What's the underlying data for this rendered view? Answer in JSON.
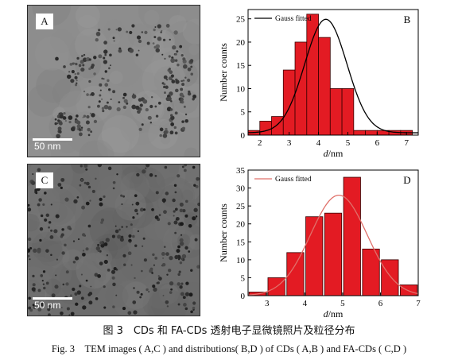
{
  "panels": {
    "a": {
      "letter": "A",
      "scale": "50 nm"
    },
    "c": {
      "letter": "C",
      "scale": "50 nm"
    }
  },
  "chart_data": [
    {
      "panel": "B",
      "type": "bar",
      "xlabel": "d/nm",
      "ylabel": "Number counts",
      "legend": "Gauss fitted",
      "legend_position": "top-left",
      "xlim": [
        1.6,
        7.4
      ],
      "ylim": [
        0,
        27
      ],
      "xticks": [
        2,
        3,
        4,
        5,
        6,
        7
      ],
      "yticks": [
        0,
        5,
        10,
        15,
        20,
        25
      ],
      "bar_width": 0.4,
      "bars": [
        {
          "x": 1.8,
          "y": 1
        },
        {
          "x": 2.2,
          "y": 3
        },
        {
          "x": 2.6,
          "y": 4
        },
        {
          "x": 3.0,
          "y": 14
        },
        {
          "x": 3.4,
          "y": 20
        },
        {
          "x": 3.8,
          "y": 26
        },
        {
          "x": 4.2,
          "y": 21
        },
        {
          "x": 4.6,
          "y": 10
        },
        {
          "x": 5.0,
          "y": 10
        },
        {
          "x": 5.4,
          "y": 1
        },
        {
          "x": 5.8,
          "y": 1
        },
        {
          "x": 6.2,
          "y": 1
        },
        {
          "x": 6.6,
          "y": 1
        },
        {
          "x": 7.0,
          "y": 1
        }
      ],
      "gauss": {
        "center": 4.25,
        "sigma": 0.72,
        "amplitude": 24.4,
        "baseline": 0.5
      },
      "colors": {
        "bar": "#e31b23",
        "edge": "#3a0000",
        "curve": "#000000"
      }
    },
    {
      "panel": "D",
      "type": "bar",
      "xlabel": "d/nm",
      "ylabel": "Number counts",
      "legend": "Gauss fitted",
      "legend_position": "top-left",
      "xlim": [
        2.5,
        7.0
      ],
      "ylim": [
        0,
        35
      ],
      "xticks": [
        3,
        4,
        5,
        6,
        7
      ],
      "yticks": [
        0,
        5,
        10,
        15,
        20,
        25,
        30,
        35
      ],
      "bar_width": 0.45,
      "bars": [
        {
          "x": 2.75,
          "y": 1
        },
        {
          "x": 3.25,
          "y": 5
        },
        {
          "x": 3.75,
          "y": 12
        },
        {
          "x": 4.25,
          "y": 22
        },
        {
          "x": 4.75,
          "y": 23
        },
        {
          "x": 5.25,
          "y": 33
        },
        {
          "x": 5.75,
          "y": 13
        },
        {
          "x": 6.25,
          "y": 10
        },
        {
          "x": 6.75,
          "y": 3
        }
      ],
      "gauss": {
        "center": 4.9,
        "sigma": 0.75,
        "amplitude": 28.0,
        "baseline": 0
      },
      "colors": {
        "bar": "#e31b23",
        "edge": "#3a0000",
        "curve": "#e0706a"
      }
    }
  ],
  "caption": {
    "cn": "图 3　CDs 和 FA-CDs 透射电子显微镜照片及粒径分布",
    "en": "Fig. 3　TEM images ( A,C ) and distributions( B,D ) of CDs ( A,B ) and FA-CDs ( C,D )"
  }
}
